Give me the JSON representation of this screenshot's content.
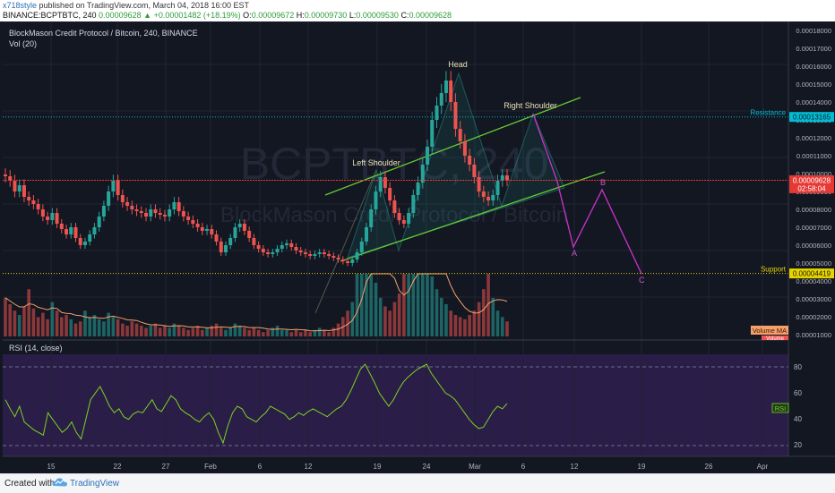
{
  "header": {
    "author": "x718style",
    "published": "published on TradingView.com, March 04, 2018 16:00 EST",
    "symbol": "BINANCE:BCPTBTC, 240",
    "last": "0.00009628",
    "change_arrow": "▲",
    "change": "+0.00001482 (+18.19%)",
    "ohlc": {
      "o_label": "O:",
      "o": "0.00009672",
      "h_label": "H:",
      "h": "0.00009730",
      "l_label": "L:",
      "l": "0.00009530",
      "c_label": "C:",
      "c": "0.00009628"
    }
  },
  "main": {
    "legend_title": "BlockMason Credit Protocol / Bitcoin, 240, BINANCE",
    "legend_vol": "Vol (20)",
    "watermark_symbol": "BCPTBTC, 240",
    "watermark_desc": "BlockMason Credit Protocol / Bitcoin"
  },
  "annotations": {
    "head": "Head",
    "left_shoulder": "Left Shoulder",
    "right_shoulder": "Right Shoulder",
    "wave_a": "A",
    "wave_b": "B",
    "wave_c": "C"
  },
  "levels": {
    "resistance": {
      "label": "Resistance",
      "value": 0.00013165,
      "value_text": "0.00013165",
      "color": "#00bcd4"
    },
    "support": {
      "label": "Support",
      "value": 4.419e-05,
      "value_text": "0.00004419",
      "color": "#e6d400"
    },
    "last_price": {
      "value": 9.628e-05,
      "value_text": "0.00009628",
      "countdown": "02:58:04",
      "color": "#e53935"
    }
  },
  "volume_labels": {
    "ma": "Volume MA",
    "vol": "Volume"
  },
  "rsi": {
    "label": "RSI (14, close)",
    "tag": "RSI",
    "ticks": [
      "80",
      "60",
      "40",
      "20"
    ],
    "color": "#7ed321"
  },
  "price_axis_ticks": [
    "0.00018000",
    "0.00017000",
    "0.00016000",
    "0.00015000",
    "0.00014000",
    "0.00013000",
    "0.00012000",
    "0.00011000",
    "0.00010000",
    "0.00009000",
    "0.00008000",
    "0.00007000",
    "0.00006000",
    "0.00005000",
    "0.00004000",
    "0.00003000",
    "0.00002000",
    "0.00001000"
  ],
  "time_axis_ticks": [
    "15",
    "22",
    "27",
    "Feb",
    "6",
    "12",
    "19",
    "24",
    "Mar",
    "6",
    "12",
    "19",
    "26",
    "Apr"
  ],
  "footer": {
    "created_with": "Created with",
    "brand": "TradingView"
  },
  "colors": {
    "up": "#26a69a",
    "down": "#ef5350",
    "channel": "#66cc33",
    "projection": "#cc33cc",
    "rsi_bg": "#2a1d47",
    "bg": "#131722"
  },
  "chart_data": {
    "type": "candlestick",
    "title": "BlockMason Credit Protocol / Bitcoin, 240, BINANCE",
    "ylim": [
      1e-05,
      0.000185
    ],
    "close": [
      9.85e-05,
      9.6e-05,
      9e-05,
      9.35e-05,
      8.7e-05,
      8.5e-05,
      8.3e-05,
      8e-05,
      7.6e-05,
      7.4e-05,
      7.8e-05,
      7.2e-05,
      6.9e-05,
      6.6e-05,
      7e-05,
      6.4e-05,
      6e-05,
      6.2e-05,
      6.6e-05,
      7e-05,
      7.6e-05,
      8.2e-05,
      9e-05,
      9.6e-05,
      8.8e-05,
      8.4e-05,
      8.2e-05,
      8e-05,
      7.9e-05,
      7.8e-05,
      7.6e-05,
      8e-05,
      7.8e-05,
      7.7e-05,
      7.6e-05,
      8e-05,
      8.4e-05,
      7.9e-05,
      7.6e-05,
      7.4e-05,
      7.2e-05,
      7e-05,
      6.8e-05,
      6.9e-05,
      6.6e-05,
      6.2e-05,
      5.6e-05,
      6e-05,
      6.4e-05,
      7e-05,
      7.2e-05,
      6.8e-05,
      6.4e-05,
      6e-05,
      5.8e-05,
      5.6e-05,
      5.5e-05,
      5.6e-05,
      5.8e-05,
      6e-05,
      6.1e-05,
      5.9e-05,
      5.7e-05,
      5.6e-05,
      5.5e-05,
      5.4e-05,
      5.5e-05,
      5.6e-05,
      5.5e-05,
      5.4e-05,
      5.3e-05,
      5.2e-05,
      5.1e-05,
      5e-05,
      5.2e-05,
      5.6e-05,
      6.2e-05,
      7e-05,
      8e-05,
      9e-05,
      9.8e-05,
      9.2e-05,
      8.5e-05,
      7.8e-05,
      7.4e-05,
      7.2e-05,
      7.8e-05,
      8.8e-05,
      9.5e-05,
      0.000105,
      0.000115,
      0.00013,
      0.000138,
      0.000145,
      0.000152,
      0.00014,
      0.000125,
      0.000118,
      0.00011,
      0.000105,
      9.8e-05,
      9e-05,
      8.7e-05,
      8.5e-05,
      8.8e-05,
      9.6e-05,
      9.9e-05,
      9.63e-05
    ],
    "volume": [
      1.8e-06,
      1.5e-06,
      1.2e-06,
      1e-06,
      1.4e-06,
      2.2e-06,
      1.3e-06,
      9e-07,
      1.1e-06,
      8e-07,
      1.6e-06,
      1.2e-06,
      9e-07,
      1e-06,
      8e-07,
      6e-07,
      7e-07,
      1.2e-06,
      9e-07,
      1e-06,
      8e-07,
      7e-07,
      1.1e-06,
      9e-07,
      8e-07,
      6e-07,
      5e-07,
      7e-07,
      6e-07,
      5e-07,
      4e-07,
      5e-07,
      6e-07,
      4e-07,
      5e-07,
      4e-07,
      6e-07,
      5e-07,
      4e-07,
      3e-07,
      4e-07,
      5e-07,
      3e-07,
      4e-07,
      5e-07,
      6e-07,
      4e-07,
      3e-07,
      4e-07,
      6e-07,
      5e-07,
      4e-07,
      3e-07,
      4e-07,
      3e-07,
      2e-07,
      3e-07,
      4e-07,
      5e-07,
      3e-07,
      3e-07,
      2e-07,
      3e-07,
      2e-07,
      3e-07,
      2e-07,
      3e-07,
      4e-07,
      3e-07,
      2e-07,
      4e-07,
      6e-07,
      9e-07,
      1.2e-06,
      1.6e-06,
      3e-06,
      4.5e-06,
      6e-06,
      4.5e-06,
      2.5e-06,
      1.8e-06,
      1.4e-06,
      1.2e-06,
      1.6e-06,
      2e-06,
      3e-06,
      3.8e-06,
      5e-06,
      5.5e-06,
      4e-06,
      3e-06,
      2.8e-06,
      2.2e-06,
      1.8e-06,
      1.5e-06,
      1.2e-06,
      1e-06,
      9e-07,
      8e-07,
      1e-06,
      1.2e-06,
      1.6e-06,
      2.2e-06,
      3e-06,
      1.8e-06,
      1.2e-06,
      9e-07,
      7e-07
    ],
    "rsi": [
      55,
      48,
      42,
      50,
      38,
      35,
      32,
      30,
      28,
      45,
      40,
      35,
      30,
      33,
      38,
      30,
      25,
      40,
      55,
      60,
      65,
      58,
      50,
      45,
      48,
      42,
      40,
      44,
      46,
      45,
      50,
      55,
      48,
      46,
      52,
      58,
      55,
      48,
      45,
      43,
      40,
      38,
      42,
      45,
      40,
      30,
      22,
      35,
      45,
      50,
      48,
      42,
      40,
      38,
      42,
      45,
      50,
      48,
      46,
      44,
      40,
      42,
      45,
      43,
      46,
      48,
      46,
      44,
      42,
      45,
      48,
      50,
      55,
      62,
      70,
      78,
      82,
      75,
      68,
      60,
      55,
      50,
      55,
      62,
      68,
      72,
      75,
      78,
      80,
      82,
      75,
      70,
      65,
      60,
      58,
      55,
      50,
      45,
      40,
      36,
      33,
      34,
      40,
      46,
      50,
      48,
      52
    ]
  }
}
